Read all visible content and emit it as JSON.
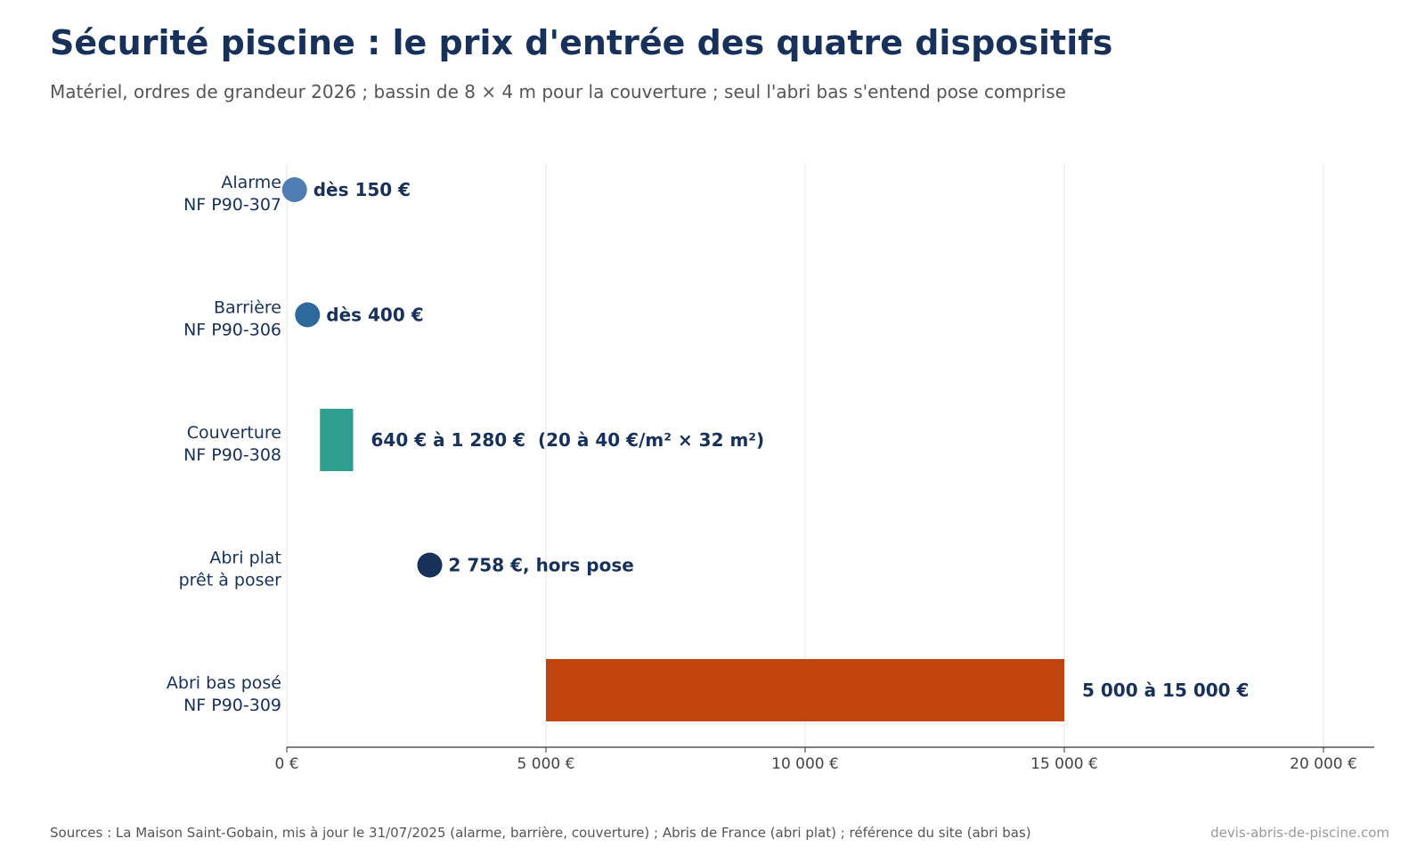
{
  "header": {
    "title": "Sécurité piscine : le prix d'entrée des quatre dispositifs",
    "subtitle": "Matériel, ordres de grandeur 2026 ; bassin de 8 × 4 m pour la couverture ; seul l'abri bas s'entend pose comprise"
  },
  "footer": {
    "source": "Sources : La Maison Saint-Gobain, mis à jour le 31/07/2025 (alarme, barrière, couverture) ; Abris de France (abri plat) ; référence du site (abri bas)",
    "site": "devis-abris-de-piscine.com"
  },
  "chart_data": {
    "type": "bar",
    "orientation": "horizontal",
    "unit": "€",
    "xlim": [
      0,
      21000
    ],
    "grid": true,
    "ticks": [
      {
        "value": 0,
        "label": "0 €"
      },
      {
        "value": 5000,
        "label": "5 000 €"
      },
      {
        "value": 10000,
        "label": "10 000 €"
      },
      {
        "value": 15000,
        "label": "15 000 €"
      },
      {
        "value": 20000,
        "label": "20 000 €"
      }
    ],
    "items": [
      {
        "label_lines": [
          "Alarme",
          "NF P90-307"
        ],
        "kind": "point",
        "value": 150,
        "color": "#4f7db3",
        "label": "dès 150 €"
      },
      {
        "label_lines": [
          "Barrière",
          "NF P90-306"
        ],
        "kind": "point",
        "value": 400,
        "color": "#2d6a9b",
        "label": "dès 400 €"
      },
      {
        "label_lines": [
          "Couverture",
          "NF P90-308"
        ],
        "kind": "range",
        "min": 640,
        "max": 1280,
        "color": "#2e9e8f",
        "label": "640 € à 1 280 €  (20 à 40 €/m² × 32 m²)"
      },
      {
        "label_lines": [
          "Abri plat",
          "prêt à poser"
        ],
        "kind": "point",
        "value": 2758,
        "color": "#17315a",
        "label": "2 758 €, hors pose"
      },
      {
        "label_lines": [
          "Abri bas posé",
          "NF P90-309"
        ],
        "kind": "range",
        "min": 5000,
        "max": 15000,
        "color": "#c0440e",
        "label": "5 000 à 15 000 €"
      }
    ]
  }
}
